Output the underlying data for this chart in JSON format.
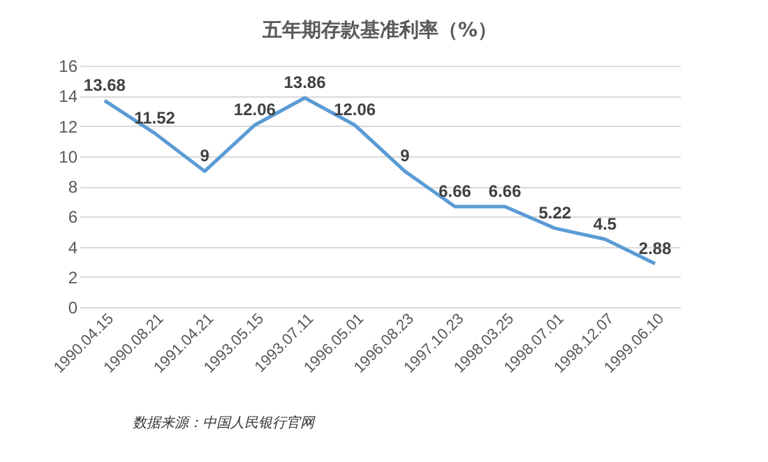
{
  "chart_data": {
    "type": "line",
    "title": "五年期存款基准利率（%）",
    "categories": [
      "1990.04.15",
      "1990.08.21",
      "1991.04.21",
      "1993.05.15",
      "1993.07.11",
      "1996.05.01",
      "1996.08.23",
      "1997.10.23",
      "1998.03.25",
      "1998.07.01",
      "1998.12.07",
      "1999.06.10"
    ],
    "series": [
      {
        "color": "#5b9bd5",
        "values": [
          13.68,
          11.52,
          9,
          12.06,
          13.86,
          12.06,
          9,
          6.66,
          6.66,
          5.22,
          4.5,
          2.88
        ]
      }
    ],
    "ylim": [
      0,
      16
    ],
    "yticks": [
      0,
      2,
      4,
      6,
      8,
      10,
      12,
      14,
      16
    ],
    "grid": "y",
    "data_labels": true,
    "legend": false,
    "marker": "none",
    "line_style": "solid",
    "annotations": [
      "数据来源：中国人民银行官网"
    ]
  }
}
